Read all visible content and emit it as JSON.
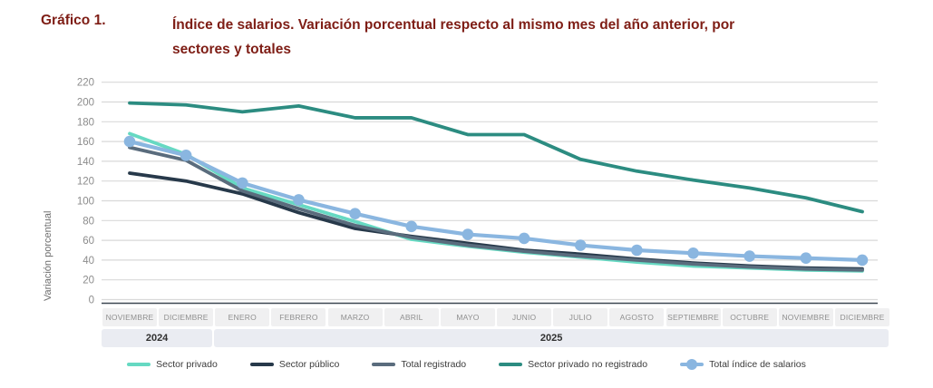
{
  "header": {
    "label": "Gráfico 1.",
    "title_lines": [
      "Índice de salarios. Variación porcentual respecto al mismo mes del año anterior, por",
      "sectores y totales"
    ]
  },
  "chart_data": {
    "type": "line",
    "title": "Índice de salarios. Variación porcentual respecto al mismo mes del año anterior, por sectores y totales",
    "ylabel": "Variación porcentual",
    "ylim": [
      0,
      220
    ],
    "ytick_step": 20,
    "grid": "horizontal",
    "legend_position": "bottom",
    "categories": [
      "NOVIEMBRE",
      "DICIEMBRE",
      "ENERO",
      "FEBRERO",
      "MARZO",
      "ABRIL",
      "MAYO",
      "JUNIO",
      "JULIO",
      "AGOSTO",
      "SEPTIEMBRE",
      "OCTUBRE",
      "NOVIEMBRE",
      "DICIEMBRE"
    ],
    "year_groups": [
      {
        "label": "2024",
        "span": 2
      },
      {
        "label": "2025",
        "span": 12
      }
    ],
    "series": [
      {
        "name": "Sector privado",
        "color": "#66d9c2",
        "marker": false,
        "values": [
          168,
          147,
          113,
          96,
          79,
          61,
          54,
          48,
          43,
          38,
          34,
          32,
          30,
          29
        ]
      },
      {
        "name": "Sector público",
        "color": "#27394a",
        "marker": false,
        "values": [
          128,
          120,
          107,
          88,
          72,
          64,
          57,
          50,
          46,
          41,
          37,
          34,
          32,
          31
        ]
      },
      {
        "name": "Total registrado",
        "color": "#5a6c7d",
        "marker": false,
        "values": [
          154,
          141,
          110,
          92,
          75,
          63,
          55,
          49,
          44,
          40,
          36,
          33,
          31,
          30
        ]
      },
      {
        "name": "Sector privado no registrado",
        "color": "#2c8c81",
        "marker": false,
        "values": [
          199,
          197,
          190,
          196,
          184,
          184,
          167,
          167,
          142,
          130,
          121,
          113,
          103,
          89
        ]
      },
      {
        "name": "Total índice de salarios",
        "color": "#8ab6e0",
        "marker": true,
        "values": [
          160,
          146,
          118,
          101,
          87,
          74,
          66,
          62,
          55,
          50,
          47,
          44,
          42,
          40
        ]
      }
    ],
    "colors": {
      "title_text": "#7e1d15",
      "gridline": "#d9d9d9",
      "axis_line": "#3d4752",
      "tick_text": "#8c8c8c",
      "month_band_bg": "#f0f0f1",
      "year_band_bg": "#eaecf2"
    }
  }
}
